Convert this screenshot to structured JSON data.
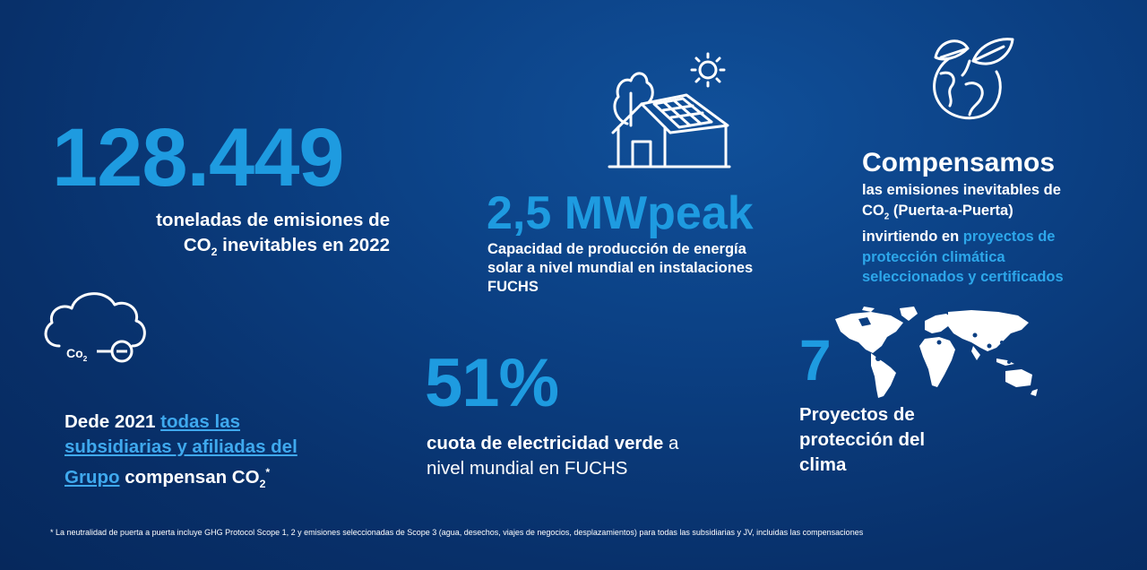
{
  "stat1": {
    "number": "128.449",
    "line1": "toneladas de emisiones de",
    "co": "CO",
    "sub": "2",
    "line2_rest": " inevitables en 2022"
  },
  "stat2": {
    "number": "2,5 MWpeak",
    "line1": "Capacidad de producción de energía",
    "line2": "solar a nivel mundial en instalaciones",
    "line3": "FUCHS"
  },
  "stat3": {
    "title": "Compensamos",
    "line1": "las emisiones inevitables de",
    "co": "CO",
    "sub": "2",
    "line2_rest": " (Puerta-a-Puerta)",
    "line3_a": "invirtiendo en ",
    "line3_b": "proyectos de",
    "line4": "protección climática",
    "line5": "seleccionados y certificados"
  },
  "stat4": {
    "line1_a": "Dede 2021 ",
    "line1_link": "todas las",
    "line2_link": "subsidiarias y afiliadas del",
    "line3_link": "Grupo",
    "line3_rest": "  compensan CO",
    "sub": "2",
    "sup": "*",
    "cloud_label": "Co",
    "cloud_sub": "2"
  },
  "stat5": {
    "number": "51%",
    "line1_bold": "cuota de electricidad verde",
    "line1_rest": " a",
    "line2": "nivel mundial en FUCHS"
  },
  "stat6": {
    "number": "7",
    "line1": "Proyectos de",
    "line2": "protección del",
    "line3": "clima"
  },
  "footnote": "* La neutralidad de puerta a puerta incluye GHG Protocol Scope 1, 2 y emisiones seleccionadas de Scope 3 (agua, desechos, viajes de negocios, desplazamientos) para todas las subsidiarias y JV, incluidas las compensaciones"
}
